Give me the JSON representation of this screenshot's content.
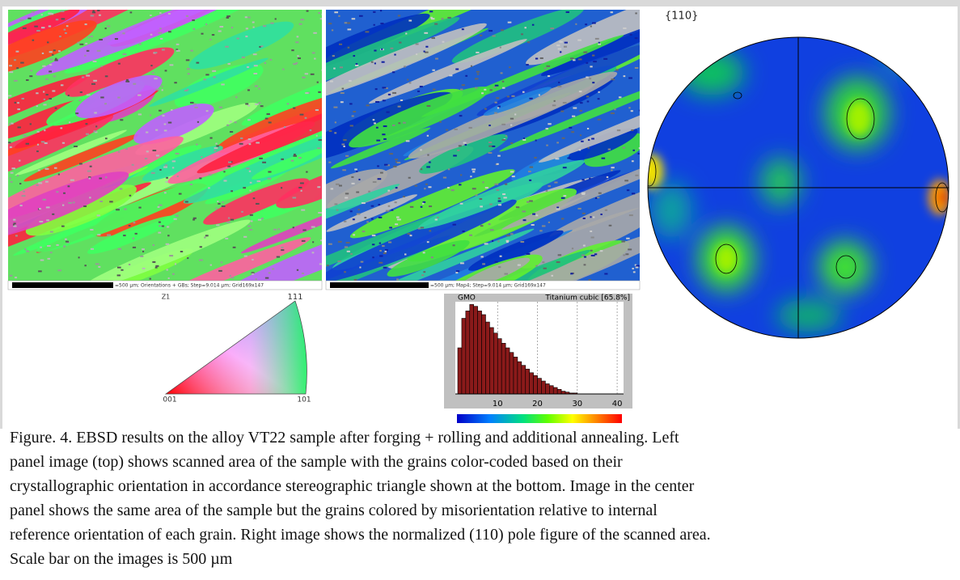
{
  "left_panel": {
    "scale_caption": "=500 µm; Orientations + GBs; Step=9.014 µm; Grid169x147",
    "axis_label": "Z1",
    "triangle": {
      "top": "111",
      "left": "001",
      "right": "101"
    }
  },
  "center_panel": {
    "scale_caption": "=500 µm; Map4; Step=9.014 µm; Grid169x147"
  },
  "histogram": {
    "title": "GMO",
    "phase": "Titanium cubic [65.8%]",
    "bins": [
      0,
      1,
      2,
      3,
      4,
      5,
      6,
      7,
      8,
      9,
      10,
      11,
      12,
      13,
      14,
      15,
      16,
      17,
      18,
      19,
      20,
      21,
      22,
      23,
      24,
      25,
      26,
      27,
      28,
      29,
      30
    ],
    "values": [
      50,
      82,
      90,
      97,
      95,
      90,
      86,
      78,
      72,
      66,
      60,
      55,
      50,
      45,
      40,
      35,
      31,
      27,
      23,
      20,
      17,
      14,
      11,
      9,
      7,
      5,
      3,
      2,
      1,
      1
    ],
    "xlim": [
      0,
      41
    ],
    "ylim": [
      0,
      100
    ],
    "xticks": [
      10,
      20,
      30,
      40
    ]
  },
  "pole_figure": {
    "label": "{110}"
  },
  "caption": {
    "lines": [
      "Figure. 4. EBSD results on the alloy VT22 sample after forging + rolling and additional annealing. Left",
      "panel image (top) shows scanned area of the sample with the grains color-coded based on their",
      "crystallographic orientation in accordance stereographic triangle shown at the bottom. Image in the center",
      "panel shows the same area of the sample but the grains colored by misorientation relative to internal",
      "reference orientation of each grain. Right image shows the normalized (110) pole figure of the scanned area.",
      "Scale bar on the images is 500 µm"
    ]
  }
}
